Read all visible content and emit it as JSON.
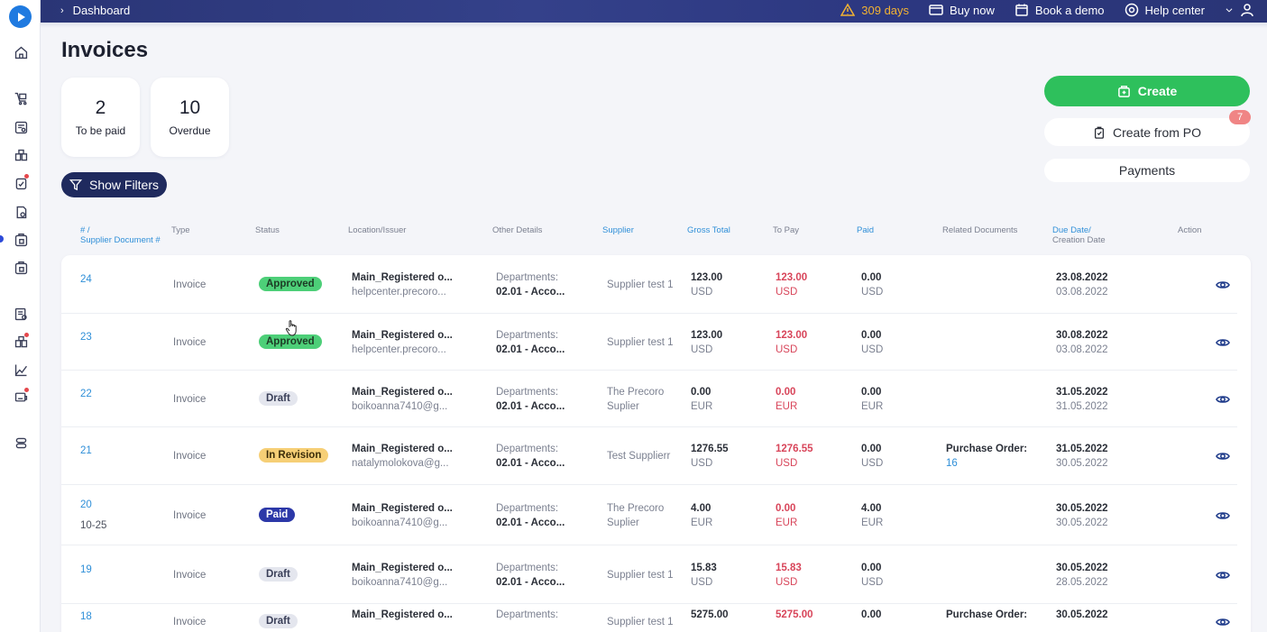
{
  "header": {
    "breadcrumb": "Dashboard",
    "trial": "309 days",
    "buy_now": "Buy now",
    "book_demo": "Book a demo",
    "help_center": "Help center"
  },
  "page": {
    "title": "Invoices"
  },
  "stats": [
    {
      "value": "2",
      "label": "To be paid"
    },
    {
      "value": "10",
      "label": "Overdue"
    }
  ],
  "actions": {
    "create": "Create",
    "create_from_po": "Create from PO",
    "create_from_po_badge": "7",
    "payments": "Payments",
    "show_filters": "Show Filters"
  },
  "table": {
    "columns": {
      "number_line1": "# /",
      "number_line2": "Supplier Document #",
      "type": "Type",
      "status": "Status",
      "location": "Location/Issuer",
      "other": "Other Details",
      "supplier": "Supplier",
      "gross": "Gross Total",
      "to_pay": "To Pay",
      "paid": "Paid",
      "related": "Related Documents",
      "due_line1": "Due Date/",
      "due_line2": "Creation Date",
      "action": "Action"
    },
    "rows": [
      {
        "num": "24",
        "doc": "",
        "type": "Invoice",
        "status": "Approved",
        "loc": "Main_Registered o...",
        "issuer": "helpcenter.precoro...",
        "dept_label": "Departments:",
        "dept": "02.01 - Acco...",
        "supplier1": "Supplier test 1",
        "supplier2": "",
        "gross": "123.00",
        "gross_cur": "USD",
        "topay": "123.00",
        "topay_cur": "USD",
        "paid": "0.00",
        "paid_cur": "USD",
        "related_label": "",
        "related": "",
        "due": "23.08.2022",
        "created": "03.08.2022"
      },
      {
        "num": "23",
        "doc": "",
        "type": "Invoice",
        "status": "Approved",
        "loc": "Main_Registered o...",
        "issuer": "helpcenter.precoro...",
        "dept_label": "Departments:",
        "dept": "02.01 - Acco...",
        "supplier1": "Supplier test 1",
        "supplier2": "",
        "gross": "123.00",
        "gross_cur": "USD",
        "topay": "123.00",
        "topay_cur": "USD",
        "paid": "0.00",
        "paid_cur": "USD",
        "related_label": "",
        "related": "",
        "due": "30.08.2022",
        "created": "03.08.2022"
      },
      {
        "num": "22",
        "doc": "",
        "type": "Invoice",
        "status": "Draft",
        "loc": "Main_Registered o...",
        "issuer": "boikoanna7410@g...",
        "dept_label": "Departments:",
        "dept": "02.01 - Acco...",
        "supplier1": "The Precoro",
        "supplier2": "Suplier",
        "gross": "0.00",
        "gross_cur": "EUR",
        "topay": "0.00",
        "topay_cur": "EUR",
        "paid": "0.00",
        "paid_cur": "EUR",
        "related_label": "",
        "related": "",
        "due": "31.05.2022",
        "created": "31.05.2022"
      },
      {
        "num": "21",
        "doc": "",
        "type": "Invoice",
        "status": "In Revision",
        "loc": "Main_Registered o...",
        "issuer": "natalymolokova@g...",
        "dept_label": "Departments:",
        "dept": "02.01 - Acco...",
        "supplier1": "Test Supplierr",
        "supplier2": "",
        "gross": "1276.55",
        "gross_cur": "USD",
        "topay": "1276.55",
        "topay_cur": "USD",
        "paid": "0.00",
        "paid_cur": "USD",
        "related_label": "Purchase Order:",
        "related": "16",
        "due": "31.05.2022",
        "created": "30.05.2022"
      },
      {
        "num": "20",
        "doc": "10-25",
        "type": "Invoice",
        "status": "Paid",
        "loc": "Main_Registered o...",
        "issuer": "boikoanna7410@g...",
        "dept_label": "Departments:",
        "dept": "02.01 - Acco...",
        "supplier1": "The Precoro",
        "supplier2": "Suplier",
        "gross": "4.00",
        "gross_cur": "EUR",
        "topay": "0.00",
        "topay_cur": "EUR",
        "paid": "4.00",
        "paid_cur": "EUR",
        "related_label": "",
        "related": "",
        "due": "30.05.2022",
        "created": "30.05.2022"
      },
      {
        "num": "19",
        "doc": "",
        "type": "Invoice",
        "status": "Draft",
        "loc": "Main_Registered o...",
        "issuer": "boikoanna7410@g...",
        "dept_label": "Departments:",
        "dept": "02.01 - Acco...",
        "supplier1": "Supplier test 1",
        "supplier2": "",
        "gross": "15.83",
        "gross_cur": "USD",
        "topay": "15.83",
        "topay_cur": "USD",
        "paid": "0.00",
        "paid_cur": "USD",
        "related_label": "",
        "related": "",
        "due": "30.05.2022",
        "created": "28.05.2022"
      },
      {
        "num": "18",
        "doc": "",
        "type": "Invoice",
        "status": "Draft",
        "loc": "Main_Registered o...",
        "issuer": "",
        "dept_label": "Departments:",
        "dept": "",
        "supplier1": "Supplier test 1",
        "supplier2": "",
        "gross": "5275.00",
        "gross_cur": "",
        "topay": "5275.00",
        "topay_cur": "",
        "paid": "0.00",
        "paid_cur": "",
        "related_label": "Purchase Order:",
        "related": "",
        "due": "30.05.2022",
        "created": ""
      }
    ]
  },
  "colors": {
    "accent_green": "#2ec05c",
    "navy": "#1f2a5e",
    "link": "#2f8fd8",
    "red": "#d8455a"
  }
}
